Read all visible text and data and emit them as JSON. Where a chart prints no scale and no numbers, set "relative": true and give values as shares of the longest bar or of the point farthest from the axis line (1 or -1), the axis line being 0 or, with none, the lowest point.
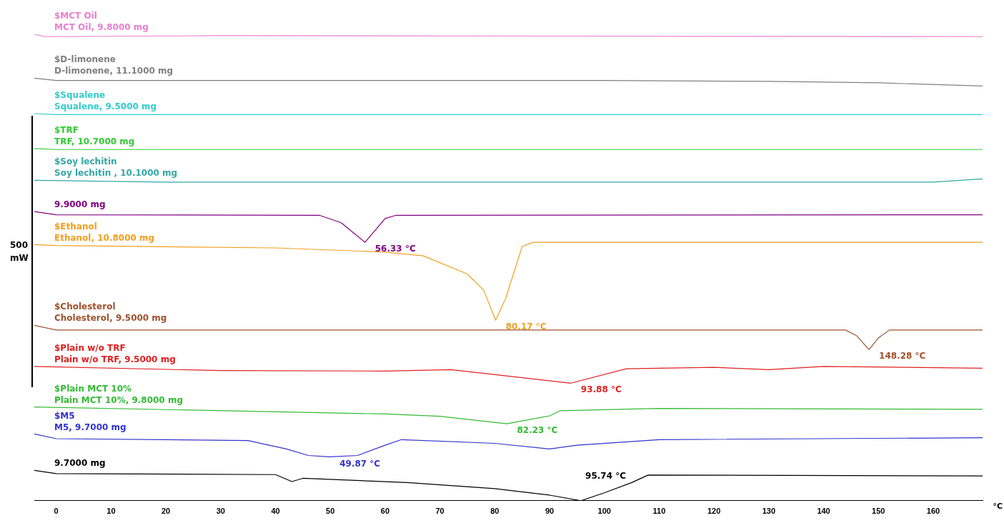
{
  "chart_data": {
    "type": "line",
    "relative": true,
    "xlabel": "°C",
    "xlim": [
      -4,
      169
    ],
    "xticks": [
      0,
      10,
      20,
      30,
      40,
      50,
      60,
      70,
      80,
      90,
      100,
      110,
      120,
      130,
      140,
      150,
      160
    ],
    "tick_labels": "x",
    "grid": false,
    "legend": false,
    "marker": "none",
    "line_style": "solid",
    "series": [
      {
        "name": "MCT Oil, 9.8000 mg",
        "color": "#e87fd0",
        "x": [
          -4,
          -2,
          30,
          169
        ],
        "values": [
          1.0,
          0.995,
          0.997,
          0.995
        ]
      },
      {
        "name": "D-limonene, 11.1000 mg",
        "color": "#808080",
        "x": [
          -4,
          0,
          100,
          130,
          150,
          169
        ],
        "values": [
          0.906,
          0.901,
          0.901,
          0.899,
          0.896,
          0.889
        ]
      },
      {
        "name": "Squalene, 9.5000 mg",
        "color": "#33cccc",
        "x": [
          -4,
          0,
          169
        ],
        "values": [
          0.83,
          0.828,
          0.828
        ]
      },
      {
        "name": "TRF, 10.7000 mg",
        "color": "#33cc33",
        "x": [
          -4,
          0,
          169
        ],
        "values": [
          0.755,
          0.753,
          0.753
        ]
      },
      {
        "name": "Soy lechitin , 10.1000 mg",
        "color": "#33a6a6",
        "x": [
          -4,
          20,
          120,
          160,
          169
        ],
        "values": [
          0.687,
          0.683,
          0.683,
          0.683,
          0.69
        ]
      },
      {
        "name": "9.9000 mg",
        "color": "#800080",
        "x": [
          -4,
          0,
          48,
          52,
          56.33,
          60,
          62,
          169
        ],
        "values": [
          0.62,
          0.613,
          0.612,
          0.596,
          0.554,
          0.605,
          0.612,
          0.613
        ]
      },
      {
        "name": "Ethanol, 10.8000 mg",
        "color": "#f0a020",
        "x": [
          -4,
          0,
          40,
          60,
          67,
          75,
          78,
          80.17,
          82,
          85,
          87,
          94,
          169
        ],
        "values": [
          0.549,
          0.547,
          0.542,
          0.533,
          0.525,
          0.486,
          0.451,
          0.387,
          0.434,
          0.545,
          0.554,
          0.554,
          0.554
        ]
      },
      {
        "name": "Cholesterol, 9.5000 mg",
        "color": "#a0522d",
        "x": [
          -4,
          0,
          144,
          146,
          148.28,
          150,
          152,
          169
        ],
        "values": [
          0.376,
          0.366,
          0.366,
          0.354,
          0.324,
          0.349,
          0.366,
          0.366
        ]
      },
      {
        "name": "Plain w/o TRF, 9.5000 mg",
        "color": "#e02020",
        "x": [
          -4,
          30,
          60,
          72,
          93.88,
          104,
          120,
          130,
          140,
          169
        ],
        "values": [
          0.288,
          0.279,
          0.278,
          0.281,
          0.252,
          0.283,
          0.286,
          0.281,
          0.288,
          0.284
        ]
      },
      {
        "name": "Plain MCT 10%, 9.8000 mg",
        "color": "#33bb33",
        "x": [
          -4,
          60,
          70,
          82.23,
          90,
          92,
          110,
          169
        ],
        "values": [
          0.201,
          0.186,
          0.181,
          0.165,
          0.182,
          0.193,
          0.198,
          0.196
        ]
      },
      {
        "name": "M5, 9.7000 mg",
        "color": "#3333cc",
        "x": [
          -4,
          0,
          35,
          42,
          46,
          49.87,
          55,
          60,
          63,
          80,
          90,
          95,
          110,
          169
        ],
        "values": [
          0.143,
          0.133,
          0.129,
          0.111,
          0.097,
          0.094,
          0.097,
          0.119,
          0.131,
          0.123,
          0.111,
          0.119,
          0.131,
          0.135
        ]
      },
      {
        "name": "9.7000 mg",
        "color": "#000000",
        "x": [
          -4,
          0,
          40,
          43,
          45,
          64,
          80,
          90,
          95.74,
          100,
          105,
          108,
          169
        ],
        "values": [
          0.065,
          0.058,
          0.056,
          0.041,
          0.048,
          0.039,
          0.026,
          0.012,
          0.0,
          0.017,
          0.039,
          0.055,
          0.053
        ]
      }
    ],
    "annotations": [
      {
        "text": "$MCT Oil",
        "x": -4,
        "y": 1.0
      },
      {
        "text": "$D-limonene",
        "x": -4,
        "y": 0.906
      },
      {
        "text": "$Squalene",
        "x": -4,
        "y": 0.83
      },
      {
        "text": "$TRF",
        "x": -4,
        "y": 0.755
      },
      {
        "text": "$Soy lechitin",
        "x": -4,
        "y": 0.687
      },
      {
        "text": "$Ethanol",
        "x": -4,
        "y": 0.549
      },
      {
        "text": "$Cholesterol",
        "x": -4,
        "y": 0.376
      },
      {
        "text": "$Plain w/o TRF",
        "x": -4,
        "y": 0.288
      },
      {
        "text": "$Plain MCT 10%",
        "x": -4,
        "y": 0.201
      },
      {
        "text": "$M5",
        "x": -4,
        "y": 0.143
      },
      {
        "text": "56.33 °C",
        "x": 56.33,
        "y": 0.554
      },
      {
        "text": "80.17 °C",
        "x": 80.17,
        "y": 0.387
      },
      {
        "text": "148.28 °C",
        "x": 148.28,
        "y": 0.324
      },
      {
        "text": "93.88 °C",
        "x": 93.88,
        "y": 0.252
      },
      {
        "text": "82.23 °C",
        "x": 82.23,
        "y": 0.165
      },
      {
        "text": "49.87 °C",
        "x": 49.87,
        "y": 0.094
      },
      {
        "text": "95.74 °C",
        "x": 95.74,
        "y": 0.0
      },
      "500 mW"
    ]
  }
}
